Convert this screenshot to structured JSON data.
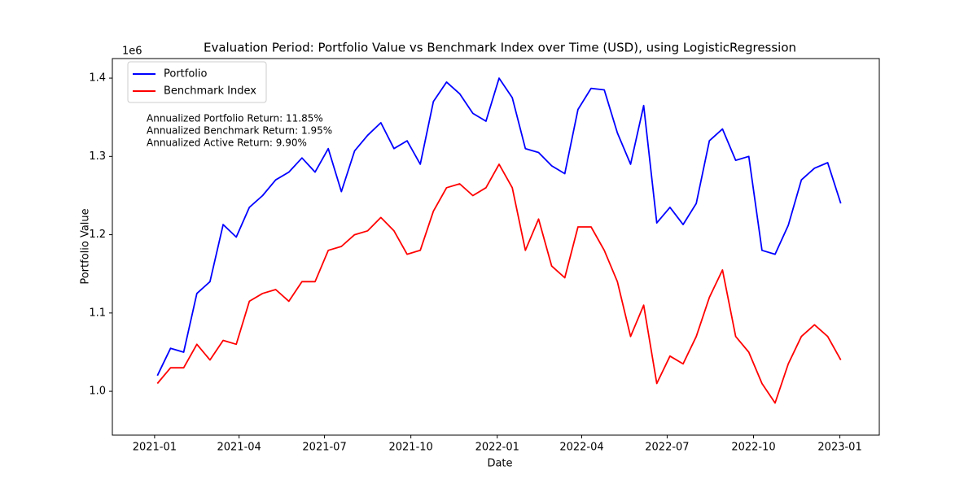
{
  "chart_data": {
    "type": "line",
    "title": "Evaluation Period: Portfolio Value vs Benchmark Index over Time (USD), using LogisticRegression",
    "x_label": "Date",
    "y_label": "Portfolio Value",
    "y_offset_label": "1e6",
    "annotations": [
      "Annualized Portfolio Return: 11.85%",
      "Annualized Benchmark Return: 1.95%",
      "Annualized Active Return: 9.90%"
    ],
    "legend": "upper left",
    "x": [
      3,
      17,
      31,
      45,
      59,
      73,
      87,
      101,
      115,
      129,
      143,
      157,
      171,
      185,
      199,
      213,
      227,
      241,
      255,
      269,
      283,
      297,
      311,
      325,
      339,
      353,
      367,
      381,
      395,
      409,
      423,
      437,
      451,
      465,
      479,
      493,
      507,
      521,
      535,
      549,
      563,
      577,
      591,
      605,
      619,
      633,
      647,
      661,
      675,
      689,
      703,
      717,
      731
    ],
    "xlim": [
      -45,
      772
    ],
    "xticks": [
      {
        "value": 0,
        "label": "2021-01"
      },
      {
        "value": 90,
        "label": "2021-04"
      },
      {
        "value": 181,
        "label": "2021-07"
      },
      {
        "value": 273,
        "label": "2021-10"
      },
      {
        "value": 365,
        "label": "2022-01"
      },
      {
        "value": 455,
        "label": "2022-04"
      },
      {
        "value": 546,
        "label": "2022-07"
      },
      {
        "value": 638,
        "label": "2022-10"
      },
      {
        "value": 730,
        "label": "2023-01"
      }
    ],
    "ylim": [
      944000,
      1425000
    ],
    "yticks": [
      {
        "value": 1000000,
        "label": "1.0"
      },
      {
        "value": 1100000,
        "label": "1.1"
      },
      {
        "value": 1200000,
        "label": "1.2"
      },
      {
        "value": 1300000,
        "label": "1.3"
      },
      {
        "value": 1400000,
        "label": "1.4"
      }
    ],
    "series": [
      {
        "name": "Portfolio",
        "color": "#0000ff",
        "values": [
          1020000,
          1055000,
          1050000,
          1125000,
          1140000,
          1213000,
          1197000,
          1235000,
          1250000,
          1270000,
          1280000,
          1298000,
          1280000,
          1310000,
          1255000,
          1307000,
          1327000,
          1343000,
          1310000,
          1320000,
          1290000,
          1370000,
          1395000,
          1380000,
          1355000,
          1345000,
          1400000,
          1375000,
          1310000,
          1305000,
          1288000,
          1278000,
          1360000,
          1387000,
          1385000,
          1330000,
          1290000,
          1365000,
          1215000,
          1235000,
          1213000,
          1240000,
          1320000,
          1335000,
          1295000,
          1300000,
          1180000,
          1175000,
          1212000,
          1270000,
          1285000,
          1292000,
          1240000
        ]
      },
      {
        "name": "Benchmark Index",
        "color": "#ff0000",
        "values": [
          1010000,
          1030000,
          1030000,
          1060000,
          1040000,
          1065000,
          1060000,
          1115000,
          1125000,
          1130000,
          1115000,
          1140000,
          1140000,
          1180000,
          1185000,
          1200000,
          1205000,
          1222000,
          1205000,
          1175000,
          1180000,
          1230000,
          1260000,
          1265000,
          1250000,
          1260000,
          1290000,
          1260000,
          1180000,
          1220000,
          1160000,
          1145000,
          1210000,
          1210000,
          1180000,
          1140000,
          1070000,
          1110000,
          1010000,
          1045000,
          1035000,
          1070000,
          1120000,
          1155000,
          1070000,
          1050000,
          1010000,
          985000,
          1035000,
          1070000,
          1085000,
          1070000,
          1040000
        ]
      }
    ]
  }
}
